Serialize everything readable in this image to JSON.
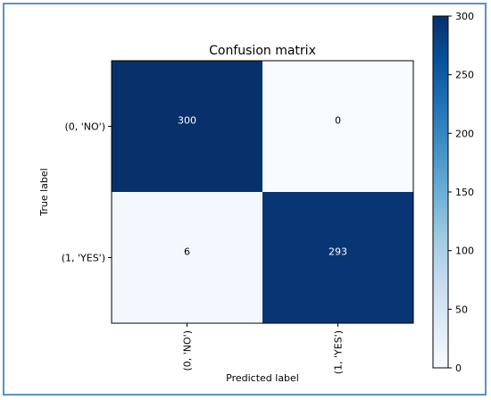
{
  "chart_data": {
    "type": "heatmap",
    "title": "Confusion matrix",
    "xlabel": "Predicted label",
    "ylabel": "True label",
    "x_categories": [
      "(0, 'NO')",
      "(1, 'YES')"
    ],
    "y_categories": [
      "(0, 'NO')",
      "(1, 'YES')"
    ],
    "values": [
      [
        300,
        0
      ],
      [
        6,
        293
      ]
    ],
    "colormap": "Blues",
    "colorbar": {
      "range": [
        0,
        300
      ],
      "ticks": [
        0,
        50,
        100,
        150,
        200,
        250,
        300
      ]
    },
    "colors": {
      "min": "#f7fbff",
      "max": "#08306b",
      "text_dark_cell": "#ffffff",
      "text_light_cell": "#000000",
      "frame_border": "#5a8fd0"
    }
  }
}
